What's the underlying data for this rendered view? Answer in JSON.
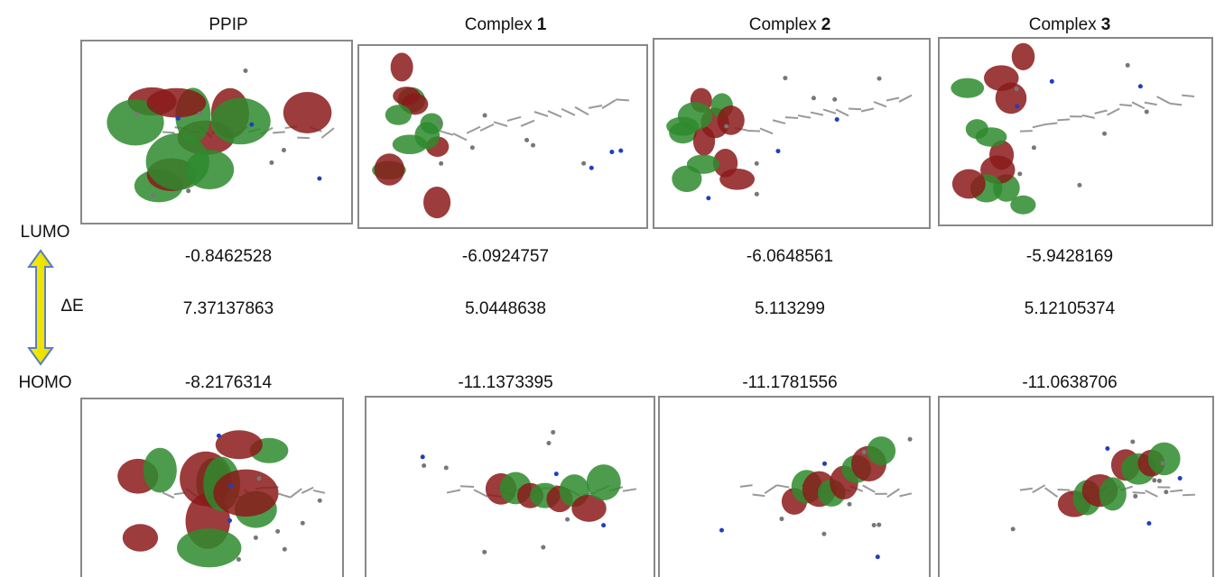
{
  "columns": [
    {
      "name": "PPIP",
      "lumo": "-0.8462528",
      "gap": "7.37137863",
      "homo": "-8.2176314"
    },
    {
      "name": "Complex",
      "number": "1",
      "lumo": "-6.0924757",
      "gap": "5.0448638",
      "homo": "-11.1373395"
    },
    {
      "name": "Complex",
      "number": "2",
      "lumo": "-6.0648561",
      "gap": "5.113299",
      "homo": "-11.1781556"
    },
    {
      "name": "Complex",
      "number": "3",
      "lumo": "-5.9428169",
      "gap": "5.12105374",
      "homo": "-11.0638706"
    }
  ],
  "row_labels": {
    "lumo": "LUMO",
    "gap": "ΔE",
    "homo": "HOMO"
  }
}
